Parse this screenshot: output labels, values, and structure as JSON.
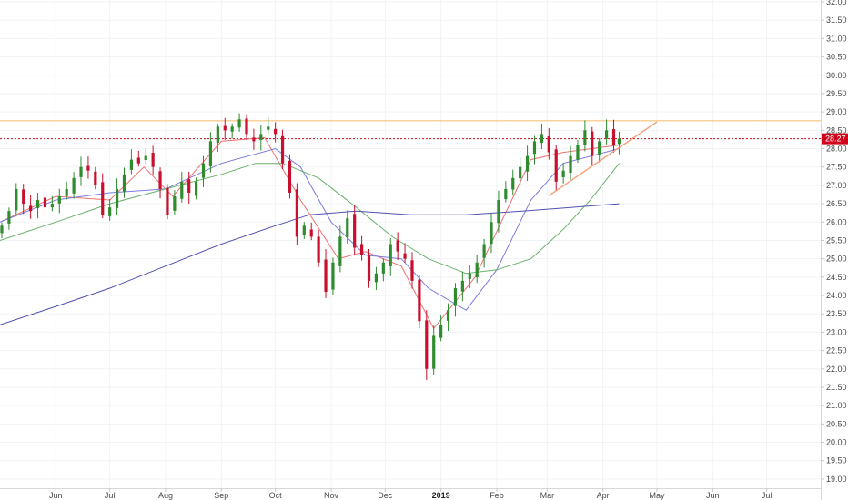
{
  "chart_data": {
    "type": "candlestick",
    "title": "",
    "xlabel": "",
    "ylabel": "",
    "ylim": [
      18.8,
      32.0
    ],
    "xlim": [
      "2018-05-01",
      "2019-07-31"
    ],
    "y_ticks": [
      19.0,
      19.5,
      20.0,
      20.5,
      21.0,
      21.5,
      22.0,
      22.5,
      23.0,
      23.5,
      24.0,
      24.5,
      25.0,
      25.5,
      26.0,
      26.5,
      27.0,
      27.5,
      28.0,
      28.5,
      29.0,
      29.5,
      30.0,
      30.5,
      31.0,
      31.5,
      32.0
    ],
    "x_ticks": [
      {
        "label": "Jun",
        "date": "2018-06-01",
        "bold": false
      },
      {
        "label": "Jul",
        "date": "2018-07-01",
        "bold": false
      },
      {
        "label": "Aug",
        "date": "2018-08-01",
        "bold": false
      },
      {
        "label": "Sep",
        "date": "2018-09-01",
        "bold": false
      },
      {
        "label": "Oct",
        "date": "2018-10-01",
        "bold": false
      },
      {
        "label": "Nov",
        "date": "2018-11-01",
        "bold": false
      },
      {
        "label": "Dec",
        "date": "2018-12-01",
        "bold": false
      },
      {
        "label": "2019",
        "date": "2019-01-01",
        "bold": true
      },
      {
        "label": "Feb",
        "date": "2019-02-01",
        "bold": false
      },
      {
        "label": "Mar",
        "date": "2019-03-01",
        "bold": false
      },
      {
        "label": "Apr",
        "date": "2019-04-01",
        "bold": false
      },
      {
        "label": "May",
        "date": "2019-05-01",
        "bold": false
      },
      {
        "label": "Jun",
        "date": "2019-06-01",
        "bold": false
      },
      {
        "label": "Jul",
        "date": "2019-07-01",
        "bold": false
      }
    ],
    "grid": true,
    "last_price": {
      "value": 28.27,
      "label": "28.27",
      "color": "#d0021b"
    },
    "colors": {
      "up": "#2e8b2e",
      "down": "#c8102e",
      "resistance": "#f5c27a",
      "trendline": "#f5a07a",
      "ma_fast": "#f07070",
      "ma_mid": "#7b7be0",
      "ma_slow": "#6ab06a",
      "ma_long": "#5050b0",
      "last_price_line": "#d0021b"
    },
    "horizontal_lines": [
      {
        "name": "resistance",
        "value": 28.76
      }
    ],
    "trendlines": [
      {
        "name": "support",
        "from": {
          "date": "2019-03-02",
          "value": 26.72
        },
        "to": {
          "date": "2019-05-01",
          "value": 28.73
        }
      }
    ],
    "closes": [
      {
        "date": "2018-05-02",
        "value": 25.9
      },
      {
        "date": "2018-05-06",
        "value": 26.3
      },
      {
        "date": "2018-05-10",
        "value": 26.9
      },
      {
        "date": "2018-05-14",
        "value": 26.5
      },
      {
        "date": "2018-05-18",
        "value": 26.3
      },
      {
        "date": "2018-05-22",
        "value": 26.6
      },
      {
        "date": "2018-05-26",
        "value": 26.4
      },
      {
        "date": "2018-05-30",
        "value": 26.5
      },
      {
        "date": "2018-06-03",
        "value": 26.7
      },
      {
        "date": "2018-06-07",
        "value": 26.9
      },
      {
        "date": "2018-06-11",
        "value": 27.2
      },
      {
        "date": "2018-06-15",
        "value": 27.5
      },
      {
        "date": "2018-06-19",
        "value": 27.4
      },
      {
        "date": "2018-06-23",
        "value": 27.0
      },
      {
        "date": "2018-06-27",
        "value": 26.2
      },
      {
        "date": "2018-07-01",
        "value": 26.4
      },
      {
        "date": "2018-07-05",
        "value": 26.9
      },
      {
        "date": "2018-07-09",
        "value": 27.3
      },
      {
        "date": "2018-07-13",
        "value": 27.7
      },
      {
        "date": "2018-07-17",
        "value": 27.6
      },
      {
        "date": "2018-07-21",
        "value": 27.8
      },
      {
        "date": "2018-07-25",
        "value": 27.5
      },
      {
        "date": "2018-07-29",
        "value": 26.9
      },
      {
        "date": "2018-08-02",
        "value": 26.2
      },
      {
        "date": "2018-08-06",
        "value": 26.7
      },
      {
        "date": "2018-08-10",
        "value": 27.1
      },
      {
        "date": "2018-08-14",
        "value": 26.8
      },
      {
        "date": "2018-08-18",
        "value": 27.1
      },
      {
        "date": "2018-08-22",
        "value": 27.6
      },
      {
        "date": "2018-08-26",
        "value": 28.2
      },
      {
        "date": "2018-08-30",
        "value": 28.6
      },
      {
        "date": "2018-09-03",
        "value": 28.5
      },
      {
        "date": "2018-09-07",
        "value": 28.6
      },
      {
        "date": "2018-09-11",
        "value": 28.8
      },
      {
        "date": "2018-09-15",
        "value": 28.4
      },
      {
        "date": "2018-09-19",
        "value": 28.2
      },
      {
        "date": "2018-09-23",
        "value": 28.4
      },
      {
        "date": "2018-09-27",
        "value": 28.6
      },
      {
        "date": "2018-10-01",
        "value": 28.4
      },
      {
        "date": "2018-10-05",
        "value": 27.6
      },
      {
        "date": "2018-10-09",
        "value": 26.8
      },
      {
        "date": "2018-10-13",
        "value": 25.6
      },
      {
        "date": "2018-10-17",
        "value": 25.9
      },
      {
        "date": "2018-10-21",
        "value": 25.6
      },
      {
        "date": "2018-10-25",
        "value": 24.9
      },
      {
        "date": "2018-10-29",
        "value": 24.1
      },
      {
        "date": "2018-11-02",
        "value": 24.9
      },
      {
        "date": "2018-11-06",
        "value": 25.6
      },
      {
        "date": "2018-11-10",
        "value": 26.1
      },
      {
        "date": "2018-11-14",
        "value": 25.3
      },
      {
        "date": "2018-11-18",
        "value": 25.1
      },
      {
        "date": "2018-11-22",
        "value": 24.4
      },
      {
        "date": "2018-11-26",
        "value": 24.6
      },
      {
        "date": "2018-11-30",
        "value": 24.9
      },
      {
        "date": "2018-12-04",
        "value": 25.4
      },
      {
        "date": "2018-12-08",
        "value": 25.2
      },
      {
        "date": "2018-12-12",
        "value": 25.0
      },
      {
        "date": "2018-12-16",
        "value": 24.4
      },
      {
        "date": "2018-12-20",
        "value": 23.3
      },
      {
        "date": "2018-12-24",
        "value": 22.0
      },
      {
        "date": "2018-12-28",
        "value": 22.9
      },
      {
        "date": "2019-01-01",
        "value": 23.2
      },
      {
        "date": "2019-01-05",
        "value": 23.6
      },
      {
        "date": "2019-01-09",
        "value": 24.2
      },
      {
        "date": "2019-01-13",
        "value": 24.4
      },
      {
        "date": "2019-01-17",
        "value": 24.6
      },
      {
        "date": "2019-01-21",
        "value": 24.9
      },
      {
        "date": "2019-01-25",
        "value": 25.4
      },
      {
        "date": "2019-01-29",
        "value": 26.0
      },
      {
        "date": "2019-02-02",
        "value": 26.6
      },
      {
        "date": "2019-02-06",
        "value": 26.9
      },
      {
        "date": "2019-02-10",
        "value": 27.2
      },
      {
        "date": "2019-02-14",
        "value": 27.5
      },
      {
        "date": "2019-02-18",
        "value": 27.8
      },
      {
        "date": "2019-02-22",
        "value": 28.2
      },
      {
        "date": "2019-02-26",
        "value": 28.4
      },
      {
        "date": "2019-03-02",
        "value": 27.9
      },
      {
        "date": "2019-03-06",
        "value": 27.1
      },
      {
        "date": "2019-03-10",
        "value": 27.4
      },
      {
        "date": "2019-03-14",
        "value": 27.8
      },
      {
        "date": "2019-03-18",
        "value": 28.1
      },
      {
        "date": "2019-03-22",
        "value": 28.5
      },
      {
        "date": "2019-03-26",
        "value": 27.8
      },
      {
        "date": "2019-03-30",
        "value": 28.2
      },
      {
        "date": "2019-04-03",
        "value": 28.5
      },
      {
        "date": "2019-04-07",
        "value": 28.1
      },
      {
        "date": "2019-04-10",
        "value": 28.27
      }
    ],
    "series": [
      {
        "name": "",
        "kind": "moving_average",
        "color": "#f07070",
        "points": [
          {
            "date": "2018-05-01",
            "value": 26.0
          },
          {
            "date": "2018-06-01",
            "value": 26.7
          },
          {
            "date": "2018-07-01",
            "value": 26.6
          },
          {
            "date": "2018-07-20",
            "value": 27.5
          },
          {
            "date": "2018-08-05",
            "value": 26.7
          },
          {
            "date": "2018-09-01",
            "value": 28.2
          },
          {
            "date": "2018-09-25",
            "value": 28.3
          },
          {
            "date": "2018-10-15",
            "value": 26.6
          },
          {
            "date": "2018-11-05",
            "value": 25.0
          },
          {
            "date": "2018-11-20",
            "value": 25.2
          },
          {
            "date": "2018-12-10",
            "value": 24.8
          },
          {
            "date": "2018-12-28",
            "value": 23.1
          },
          {
            "date": "2019-01-20",
            "value": 24.5
          },
          {
            "date": "2019-02-20",
            "value": 27.7
          },
          {
            "date": "2019-03-10",
            "value": 27.9
          },
          {
            "date": "2019-04-10",
            "value": 28.1
          }
        ]
      },
      {
        "name": "",
        "kind": "moving_average",
        "color": "#7b7be0",
        "points": [
          {
            "date": "2018-05-01",
            "value": 26.0
          },
          {
            "date": "2018-06-01",
            "value": 26.6
          },
          {
            "date": "2018-07-01",
            "value": 26.8
          },
          {
            "date": "2018-08-01",
            "value": 26.9
          },
          {
            "date": "2018-09-01",
            "value": 27.6
          },
          {
            "date": "2018-10-01",
            "value": 28.0
          },
          {
            "date": "2018-10-15",
            "value": 27.5
          },
          {
            "date": "2018-11-01",
            "value": 26.0
          },
          {
            "date": "2018-11-20",
            "value": 25.1
          },
          {
            "date": "2018-12-10",
            "value": 25.0
          },
          {
            "date": "2018-12-25",
            "value": 24.2
          },
          {
            "date": "2019-01-15",
            "value": 23.6
          },
          {
            "date": "2019-02-01",
            "value": 24.7
          },
          {
            "date": "2019-02-20",
            "value": 26.6
          },
          {
            "date": "2019-03-10",
            "value": 27.6
          },
          {
            "date": "2019-04-10",
            "value": 28.0
          }
        ]
      },
      {
        "name": "",
        "kind": "moving_average",
        "color": "#6ab06a",
        "points": [
          {
            "date": "2018-05-01",
            "value": 25.5
          },
          {
            "date": "2018-06-01",
            "value": 26.0
          },
          {
            "date": "2018-07-01",
            "value": 26.5
          },
          {
            "date": "2018-08-01",
            "value": 26.9
          },
          {
            "date": "2018-09-01",
            "value": 27.3
          },
          {
            "date": "2018-09-20",
            "value": 27.6
          },
          {
            "date": "2018-10-05",
            "value": 27.6
          },
          {
            "date": "2018-10-25",
            "value": 27.2
          },
          {
            "date": "2018-11-15",
            "value": 26.4
          },
          {
            "date": "2018-12-05",
            "value": 25.6
          },
          {
            "date": "2018-12-25",
            "value": 25.0
          },
          {
            "date": "2019-01-15",
            "value": 24.6
          },
          {
            "date": "2019-02-01",
            "value": 24.7
          },
          {
            "date": "2019-02-20",
            "value": 25.0
          },
          {
            "date": "2019-03-10",
            "value": 25.8
          },
          {
            "date": "2019-03-25",
            "value": 26.6
          },
          {
            "date": "2019-04-10",
            "value": 27.6
          }
        ]
      },
      {
        "name": "",
        "kind": "moving_average",
        "color": "#5050b0",
        "points": [
          {
            "date": "2018-05-01",
            "value": 23.2
          },
          {
            "date": "2018-06-01",
            "value": 23.7
          },
          {
            "date": "2018-07-01",
            "value": 24.2
          },
          {
            "date": "2018-08-01",
            "value": 24.8
          },
          {
            "date": "2018-09-01",
            "value": 25.4
          },
          {
            "date": "2018-10-01",
            "value": 25.9
          },
          {
            "date": "2018-10-20",
            "value": 26.2
          },
          {
            "date": "2018-11-15",
            "value": 26.3
          },
          {
            "date": "2018-12-15",
            "value": 26.2
          },
          {
            "date": "2019-01-15",
            "value": 26.2
          },
          {
            "date": "2019-02-15",
            "value": 26.3
          },
          {
            "date": "2019-03-15",
            "value": 26.4
          },
          {
            "date": "2019-04-10",
            "value": 26.5
          }
        ]
      }
    ]
  }
}
